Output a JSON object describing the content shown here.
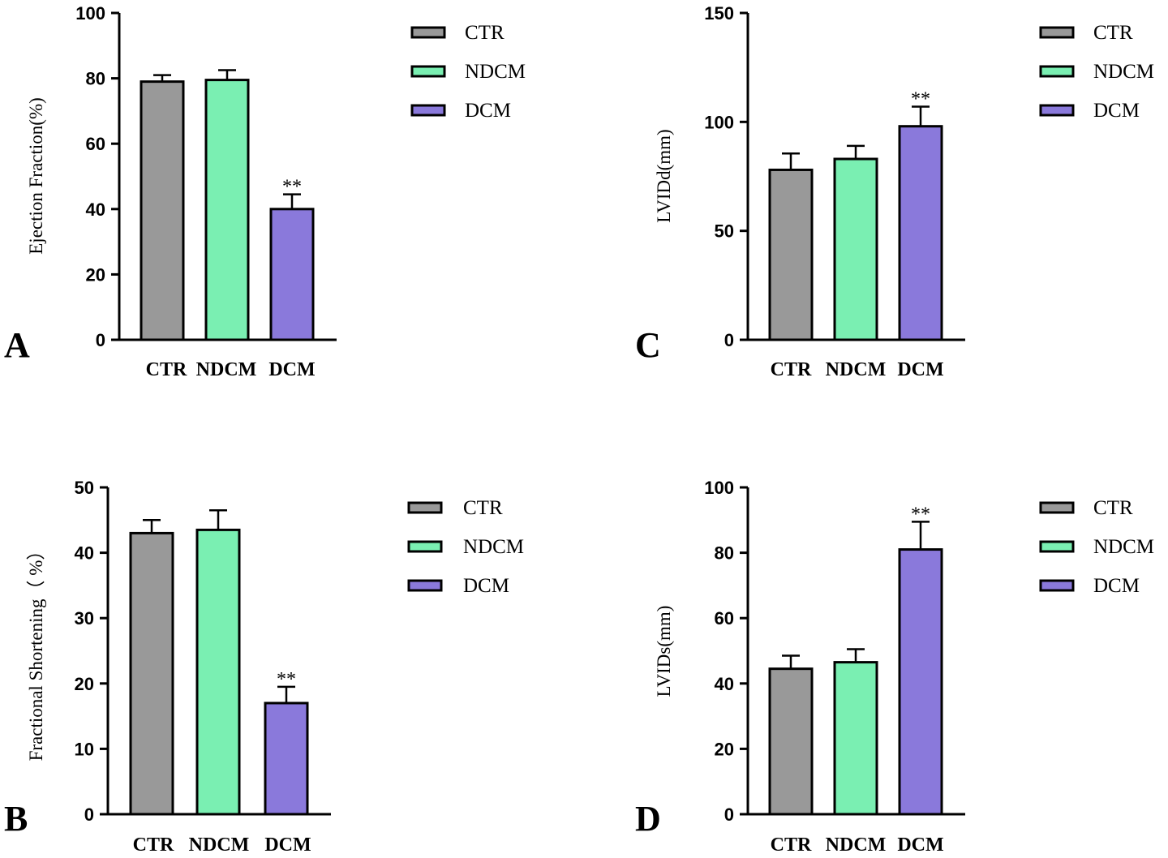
{
  "colors": {
    "CTR": "#999999",
    "NDCM": "#7aefb2",
    "DCM": "#8a79db"
  },
  "legend": [
    "CTR",
    "NDCM",
    "DCM"
  ],
  "chart_data": [
    {
      "panel": "A",
      "type": "bar",
      "ylabel": "Ejection Fraction(%)",
      "ylim": [
        0,
        100
      ],
      "yticks": [
        0,
        20,
        40,
        60,
        80,
        100
      ],
      "categories": [
        "CTR",
        "NDCM",
        "DCM"
      ],
      "values": [
        79,
        79.5,
        40
      ],
      "errors": [
        2,
        3,
        4.5
      ],
      "significance": [
        "",
        "",
        "**"
      ]
    },
    {
      "panel": "C",
      "type": "bar",
      "ylabel": "LVIDd(mm)",
      "ylim": [
        0,
        150
      ],
      "yticks": [
        0,
        50,
        100,
        150
      ],
      "categories": [
        "CTR",
        "NDCM",
        "DCM"
      ],
      "values": [
        78,
        83,
        98
      ],
      "errors": [
        7.5,
        6,
        9
      ],
      "significance": [
        "",
        "",
        "**"
      ]
    },
    {
      "panel": "B",
      "type": "bar",
      "ylabel": "Fractional Shortening（ %）",
      "ylim": [
        0,
        50
      ],
      "yticks": [
        0,
        10,
        20,
        30,
        40,
        50
      ],
      "categories": [
        "CTR",
        "NDCM",
        "DCM"
      ],
      "values": [
        43,
        43.5,
        17
      ],
      "errors": [
        2,
        3,
        2.5
      ],
      "significance": [
        "",
        "",
        "**"
      ]
    },
    {
      "panel": "D",
      "type": "bar",
      "ylabel": "LVIDs(mm)",
      "ylim": [
        0,
        100
      ],
      "yticks": [
        0,
        20,
        40,
        60,
        80,
        100
      ],
      "categories": [
        "CTR",
        "NDCM",
        "DCM"
      ],
      "values": [
        44.5,
        46.5,
        81
      ],
      "errors": [
        4,
        4,
        8.5
      ],
      "significance": [
        "",
        "",
        "**"
      ]
    }
  ]
}
